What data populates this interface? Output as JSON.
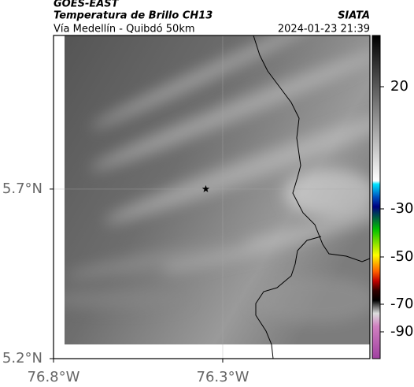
{
  "header": {
    "title": "GOES-EAST",
    "subtitle": "Temperatura de Brillo CH13",
    "route": "Vía Medellín - Quibdó 50km",
    "source": "SIATA",
    "timestamp": "2024-01-23 21:39"
  },
  "map": {
    "xlim": [
      -76.8,
      -75.865
    ],
    "ylim": [
      5.2,
      6.153
    ],
    "xticks": [
      {
        "value": -76.8,
        "label": "76.8°W"
      },
      {
        "value": -76.3,
        "label": "76.3°W"
      }
    ],
    "yticks": [
      {
        "value": 5.2,
        "label": "5.2°N"
      },
      {
        "value": 5.7,
        "label": "5.7°N"
      }
    ],
    "grid": true,
    "marker": {
      "lon": -76.35,
      "lat": 5.7
    }
  },
  "colorbar": {
    "lim": [
      -110,
      40
    ],
    "ticks": [
      20,
      -30,
      -50,
      -70,
      -90
    ]
  }
}
